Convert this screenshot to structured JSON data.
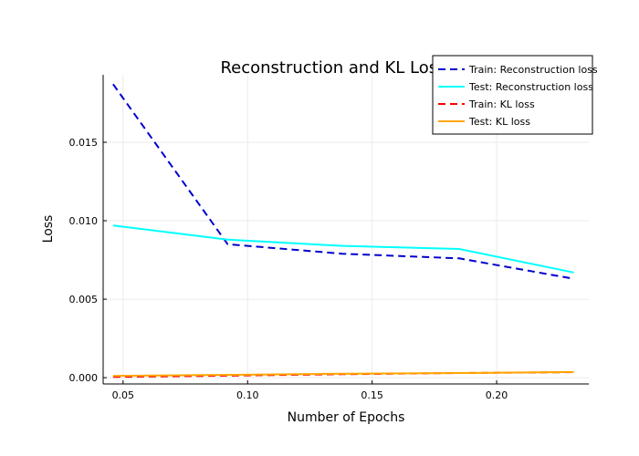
{
  "chart_data": {
    "type": "line",
    "title": "Reconstruction and KL Loss",
    "xlabel": "Number of Epochs",
    "ylabel": "Loss",
    "x": [
      0.046,
      0.092,
      0.138,
      0.185,
      0.231
    ],
    "xlim": [
      0.042,
      0.237
    ],
    "ylim": [
      -0.0004,
      0.0193
    ],
    "xticks": [
      0.05,
      0.1,
      0.15,
      0.2
    ],
    "xtick_labels": [
      "0.05",
      "0.10",
      "0.15",
      "0.20"
    ],
    "yticks": [
      0.0,
      0.005,
      0.01,
      0.015
    ],
    "ytick_labels": [
      "0.000",
      "0.005",
      "0.010",
      "0.015"
    ],
    "grid": true,
    "legend_position": "top-right",
    "series": [
      {
        "name": "Train: Reconstruction loss",
        "color": "#0000cd",
        "dash": "dashed",
        "values": [
          0.0187,
          0.0085,
          0.0079,
          0.0076,
          0.0063
        ]
      },
      {
        "name": "Test: Reconstruction loss",
        "color": "#00ffff",
        "dash": "solid",
        "values": [
          0.0097,
          0.0088,
          0.0084,
          0.0082,
          0.0067
        ]
      },
      {
        "name": "Train: KL loss",
        "color": "#ff0000",
        "dash": "dashed",
        "values": [
          5e-05,
          0.00013,
          0.00022,
          0.0003,
          0.00035
        ]
      },
      {
        "name": "Test: KL loss",
        "color": "#ffa500",
        "dash": "solid",
        "values": [
          0.00012,
          0.00018,
          0.00025,
          0.0003,
          0.00036
        ]
      }
    ]
  }
}
